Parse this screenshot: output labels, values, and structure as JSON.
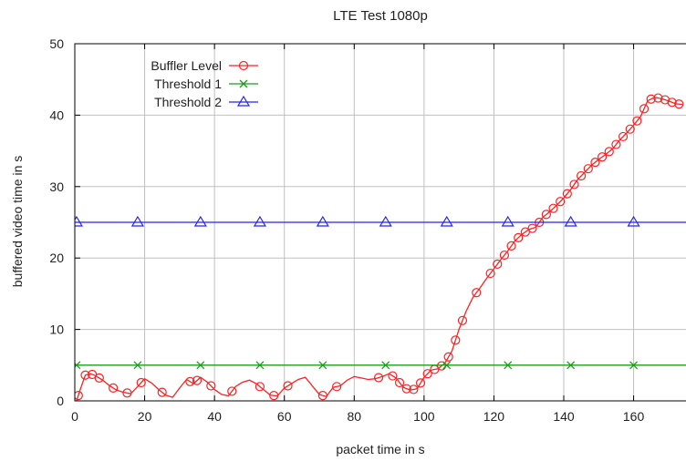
{
  "chart_data": {
    "type": "line",
    "title": "LTE Test 1080p",
    "xlabel": "packet time in s",
    "ylabel": "buffered video time in s",
    "xlim": [
      0,
      175
    ],
    "ylim": [
      0,
      50
    ],
    "xticks": [
      0,
      20,
      40,
      60,
      80,
      100,
      120,
      140,
      160
    ],
    "yticks": [
      0,
      10,
      20,
      30,
      40,
      50
    ],
    "grid": true,
    "legend_position": "top-left",
    "series": [
      {
        "name": "Buffler Level",
        "color": "#ff2020",
        "marker": "circle",
        "x": [
          0.5,
          1.5,
          3,
          4.5,
          6,
          8,
          10,
          12,
          14,
          16,
          18,
          20,
          22,
          24,
          26,
          28,
          30,
          32,
          34,
          36,
          38,
          40,
          42,
          44,
          46,
          48,
          50,
          52,
          54,
          56,
          58,
          60,
          62,
          64,
          66,
          68,
          70,
          72,
          74,
          76,
          78,
          80,
          82,
          84,
          86,
          88,
          90,
          92,
          94,
          96,
          98,
          100,
          102,
          104,
          106,
          108,
          110,
          112,
          114,
          116,
          118,
          120,
          122,
          124,
          126,
          128,
          130,
          132,
          134,
          136,
          138,
          140,
          142,
          144,
          146,
          148,
          150,
          152,
          154,
          156,
          158,
          160,
          162,
          164,
          166,
          168,
          170,
          172,
          174
        ],
        "y": [
          0,
          1.5,
          3.6,
          3.8,
          3.5,
          2.9,
          2.1,
          1.5,
          1.2,
          1.0,
          2.0,
          3.1,
          2.5,
          1.6,
          0.8,
          0.5,
          1.8,
          3.0,
          2.4,
          3.3,
          2.6,
          1.6,
          0.9,
          0.7,
          2.0,
          2.6,
          2.9,
          2.4,
          1.6,
          0.8,
          0.7,
          1.8,
          2.4,
          3.0,
          3.3,
          2.1,
          0.9,
          0.6,
          1.9,
          2.1,
          2.9,
          3.4,
          3.2,
          3.0,
          3.1,
          3.4,
          3.8,
          3.2,
          1.9,
          1.5,
          1.7,
          3.3,
          4.3,
          4.5,
          5.3,
          7.0,
          10.0,
          12.5,
          14.5,
          15.8,
          17.2,
          18.5,
          19.8,
          21.0,
          22.4,
          23.3,
          24.0,
          24.3,
          25.7,
          26.5,
          27.4,
          28.4,
          29.6,
          31.0,
          32.0,
          33.0,
          33.8,
          34.5,
          35.3,
          36.5,
          37.5,
          38.6,
          39.8,
          42.0,
          42.5,
          42.3,
          42.0,
          41.6,
          41.5
        ],
        "marker_x": [
          1,
          3,
          5,
          7,
          11,
          15,
          19,
          25,
          33,
          35,
          39,
          45,
          53,
          57,
          61,
          71,
          75,
          87,
          91,
          93,
          95,
          97,
          99,
          101,
          103,
          105,
          107,
          109,
          111,
          115,
          119,
          121,
          123,
          125,
          127,
          129,
          131,
          133,
          135,
          137,
          139,
          141,
          143,
          145,
          147,
          149,
          151,
          153,
          155,
          157,
          159,
          161,
          163,
          165,
          167,
          169,
          171,
          173
        ]
      },
      {
        "name": "Threshold 1",
        "color": "#1a9e1a",
        "marker": "x",
        "x": [
          0,
          175
        ],
        "y": [
          5,
          5
        ],
        "marker_x": [
          0.5,
          18,
          36,
          53,
          71,
          89,
          106.5,
          124,
          142,
          160
        ]
      },
      {
        "name": "Threshold 2",
        "color": "#2020ff",
        "marker": "triangle",
        "x": [
          0,
          175
        ],
        "y": [
          25,
          25
        ],
        "marker_x": [
          0.5,
          18,
          36,
          53,
          71,
          89,
          106.5,
          124,
          142,
          160
        ]
      }
    ]
  }
}
